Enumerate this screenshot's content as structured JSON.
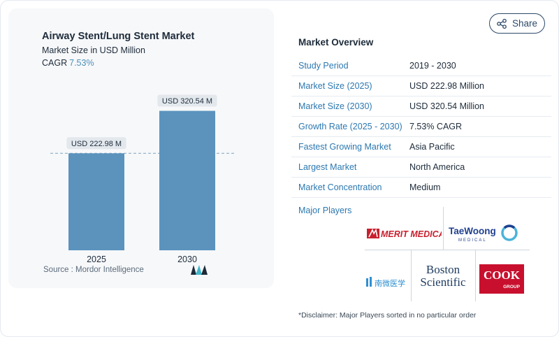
{
  "chart_data": {
    "type": "bar",
    "title": "Airway Stent/Lung Stent Market",
    "subtitle": "Market Size in USD Million",
    "cagr_label": "CAGR",
    "cagr_value": "7.53%",
    "categories": [
      "2025",
      "2030"
    ],
    "values": [
      222.98,
      320.54
    ],
    "data_labels": [
      "USD 222.98 M",
      "USD 320.54 M"
    ],
    "ylim": [
      0,
      360
    ],
    "reference_line": 222.98,
    "bar_color": "#5b93bd",
    "grid": false,
    "legend": "none"
  },
  "source_label": "Source :",
  "source_value": "Mordor Intelligence",
  "share_label": "Share",
  "overview": {
    "title": "Market Overview",
    "rows": [
      {
        "label": "Study Period",
        "value": "2019 - 2030"
      },
      {
        "label": "Market Size (2025)",
        "value": "USD 222.98 Million"
      },
      {
        "label": "Market Size (2030)",
        "value": "USD 320.54 Million"
      },
      {
        "label": "Growth Rate (2025 - 2030)",
        "value": "7.53% CAGR"
      },
      {
        "label": "Fastest Growing Market",
        "value": "Asia Pacific"
      },
      {
        "label": "Largest Market",
        "value": "North America"
      },
      {
        "label": "Market Concentration",
        "value": "Medium"
      }
    ],
    "players_title": "Major Players",
    "players": [
      {
        "name": "MERIT MEDICAL"
      },
      {
        "name": "TaeWoong",
        "sub": "MEDICAL"
      },
      {
        "name": "南微医学"
      },
      {
        "name": "Boston Scientific"
      },
      {
        "name": "COOK",
        "sub": "GROUP"
      }
    ],
    "disclaimer": "*Disclaimer: Major Players sorted in no particular order"
  },
  "colors": {
    "accent": "#2c78b0",
    "bar": "#5b93bd",
    "cook_red": "#c8102e",
    "merit_red": "#c8202e",
    "taewoong_blue": "#1f3f8f"
  }
}
